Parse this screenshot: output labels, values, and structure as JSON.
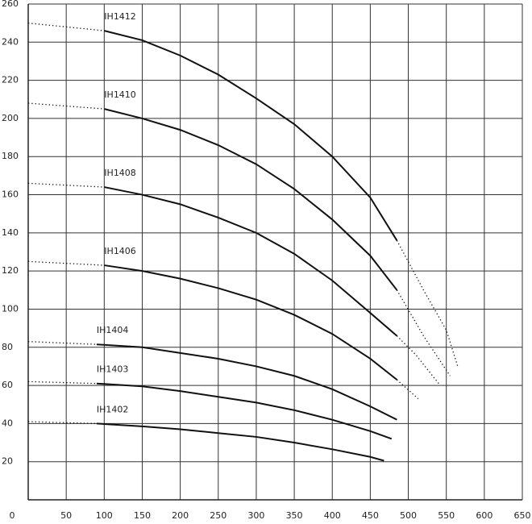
{
  "chart_data": {
    "type": "line",
    "xlim": [
      0,
      650
    ],
    "ylim": [
      0,
      260
    ],
    "xticks": [
      0,
      50,
      100,
      150,
      200,
      250,
      300,
      350,
      400,
      450,
      500,
      550,
      600,
      650
    ],
    "yticks": [
      20,
      40,
      60,
      80,
      100,
      120,
      140,
      160,
      180,
      200,
      220,
      240,
      260
    ],
    "grid": true,
    "series": [
      {
        "name": "IH1412",
        "color": "#111111",
        "x": [
          0,
          100,
          150,
          200,
          250,
          300,
          350,
          400,
          450,
          485,
          520,
          550,
          565
        ],
        "values": [
          250,
          246,
          241,
          233,
          223,
          210.5,
          197,
          180,
          158.5,
          136,
          110,
          89,
          70
        ],
        "segment_styles": [
          "dotted",
          "solid",
          "solid",
          "solid",
          "solid",
          "solid",
          "solid",
          "solid",
          "solid",
          "dotted",
          "dotted",
          "dotted"
        ]
      },
      {
        "name": "IH1410",
        "color": "#111111",
        "x": [
          0,
          100,
          150,
          200,
          250,
          300,
          350,
          400,
          450,
          485,
          520,
          555
        ],
        "values": [
          208,
          205,
          200,
          194,
          186,
          176,
          163,
          147,
          128,
          110,
          86,
          65
        ],
        "segment_styles": [
          "dotted",
          "solid",
          "solid",
          "solid",
          "solid",
          "solid",
          "solid",
          "solid",
          "solid",
          "dotted",
          "dotted"
        ]
      },
      {
        "name": "IH1408",
        "color": "#111111",
        "x": [
          0,
          100,
          150,
          200,
          250,
          300,
          350,
          400,
          450,
          485,
          510,
          540
        ],
        "values": [
          166,
          164,
          160,
          155,
          148,
          140,
          129,
          115,
          98,
          86,
          76,
          61
        ],
        "segment_styles": [
          "dotted",
          "solid",
          "solid",
          "solid",
          "solid",
          "solid",
          "solid",
          "solid",
          "solid",
          "dotted",
          "dotted"
        ]
      },
      {
        "name": "IH1406",
        "color": "#111111",
        "x": [
          0,
          100,
          150,
          200,
          250,
          300,
          350,
          400,
          450,
          485,
          513
        ],
        "values": [
          125,
          123,
          120,
          116,
          111,
          105,
          97,
          87,
          74,
          63,
          53
        ],
        "segment_styles": [
          "dotted",
          "solid",
          "solid",
          "solid",
          "solid",
          "solid",
          "solid",
          "solid",
          "solid",
          "dotted"
        ]
      },
      {
        "name": "IH1404",
        "color": "#111111",
        "x": [
          0,
          90,
          150,
          200,
          250,
          300,
          350,
          400,
          450,
          485
        ],
        "values": [
          83,
          81.5,
          80,
          77,
          74,
          70,
          65,
          58,
          49,
          42
        ],
        "segment_styles": [
          "dotted",
          "solid",
          "solid",
          "solid",
          "solid",
          "solid",
          "solid",
          "solid",
          "solid"
        ]
      },
      {
        "name": "IH1403",
        "color": "#111111",
        "x": [
          0,
          90,
          150,
          200,
          250,
          300,
          350,
          400,
          450,
          478
        ],
        "values": [
          62,
          61,
          59.5,
          57,
          54,
          51,
          47,
          42,
          36,
          32
        ],
        "segment_styles": [
          "dotted",
          "solid",
          "solid",
          "solid",
          "solid",
          "solid",
          "solid",
          "solid",
          "solid"
        ]
      },
      {
        "name": "IH1402",
        "color": "#111111",
        "x": [
          0,
          90,
          150,
          200,
          250,
          300,
          350,
          400,
          450,
          468
        ],
        "values": [
          41,
          40,
          38.5,
          37,
          35,
          33,
          30,
          26.5,
          22.5,
          20.5
        ],
        "segment_styles": [
          "dotted",
          "solid",
          "solid",
          "solid",
          "solid",
          "solid",
          "solid",
          "solid",
          "solid"
        ]
      }
    ]
  }
}
